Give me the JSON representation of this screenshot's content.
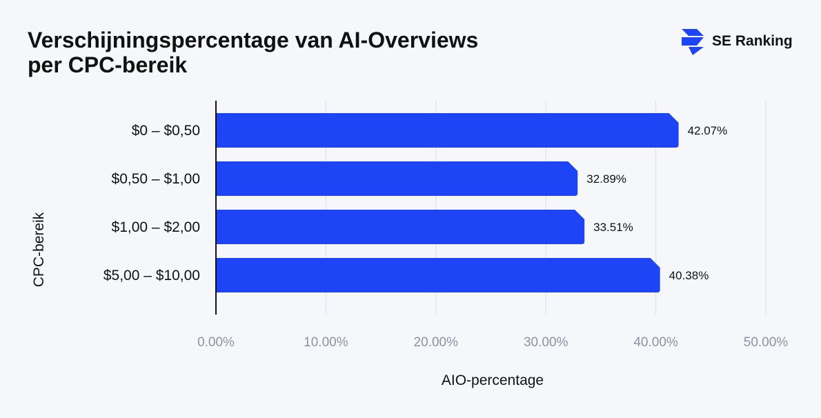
{
  "title_lines": [
    "Verschijningspercentage van AI-Overviews",
    "per CPC-bereik"
  ],
  "brand": {
    "name": "SE Ranking",
    "icon": "se-ranking-logo-icon",
    "color": "#1d45f5"
  },
  "chart_data": {
    "type": "bar",
    "orientation": "horizontal",
    "title": "Verschijningspercentage van AI-Overviews per CPC-bereik",
    "xlabel": "AIO-percentage",
    "ylabel": "CPC-bereik",
    "categories": [
      "$0 – $0,50",
      "$0,50 – $1,00",
      "$1,00 – $2,00",
      "$5,00 – $10,00"
    ],
    "values": [
      42.07,
      32.89,
      33.51,
      40.38
    ],
    "value_labels": [
      "42.07%",
      "32.89%",
      "33.51%",
      "40.38%"
    ],
    "xlim": [
      0,
      50
    ],
    "xticks": [
      0,
      10,
      20,
      30,
      40,
      50
    ],
    "xtick_labels": [
      "0.00%",
      "10.00%",
      "20.00%",
      "30.00%",
      "40.00%",
      "50.00%"
    ],
    "grid": true,
    "bar_color": "#1d45f5"
  }
}
